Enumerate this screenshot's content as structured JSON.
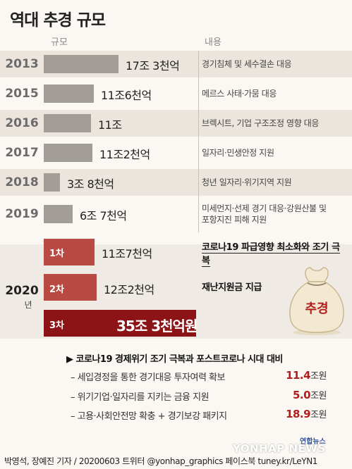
{
  "title": "역대 추경 규모",
  "col_scale": "규모",
  "col_content": "내용",
  "chart_data": {
    "type": "bar",
    "title": "역대 추경 규모",
    "unit": "조원",
    "categories": [
      "2013",
      "2015",
      "2016",
      "2017",
      "2018",
      "2019",
      "2020 1차",
      "2020 2차",
      "2020 3차"
    ],
    "values": [
      17.3,
      11.6,
      11.0,
      11.2,
      3.8,
      6.7,
      11.7,
      12.2,
      35.3
    ],
    "series": [
      {
        "values": [
          17.3,
          11.6,
          11.0,
          11.2,
          3.8,
          6.7,
          11.7,
          12.2,
          35.3
        ]
      }
    ]
  },
  "rows": [
    {
      "year": "2013",
      "amount": "17조 3천억",
      "content": "경기침체 및 세수결손 대응"
    },
    {
      "year": "2015",
      "amount": "11조6천억",
      "content": "메르스 사태·가뭄 대응"
    },
    {
      "year": "2016",
      "amount": "11조",
      "content": "브렉시트, 기업 구조조정 영향 대응"
    },
    {
      "year": "2017",
      "amount": "11조2천억",
      "content": "일자리·민생안정 지원"
    },
    {
      "year": "2018",
      "amount": "3조 8천억",
      "content": "청년 일자리·위기지역 지원"
    },
    {
      "year": "2019",
      "amount": "6조 7천억",
      "content": "미세먼지·선제 경기 대응·강원산불 및 포항지진 피해 지원"
    }
  ],
  "y2020": {
    "year": "2020",
    "suffix": "년",
    "rows": [
      {
        "label": "1차",
        "amount": "11조7천억",
        "content": "코로나19 파급영향 최소화와 조기 극복"
      },
      {
        "label": "2차",
        "amount": "12조2천억",
        "content": "재난지원금 지급"
      },
      {
        "label": "3차",
        "amount": "35조 3천억원"
      }
    ]
  },
  "sack_text": "추경",
  "notes": {
    "heading": "▶ 코로나19 경제위기 조기 극복과 포스트코로나 시대 대비",
    "unit": "조원",
    "items": [
      {
        "text": "– 세입경정을 통한 경기대응 투자여력 확보",
        "value": "11.4"
      },
      {
        "text": "– 위기기업·일자리를 지키는 금융 지원",
        "value": "5.0"
      },
      {
        "text": "– 고용·사회안전망 확충 + 경기보강 패키지",
        "value": "18.9"
      }
    ]
  },
  "logo": "연합뉴스",
  "watermark": "YONHAP NEWS",
  "footer": "박영석, 장예진 기자 / 20200603 트위터 @yonhap_graphics  페이스북 tuney.kr/LeYN1"
}
